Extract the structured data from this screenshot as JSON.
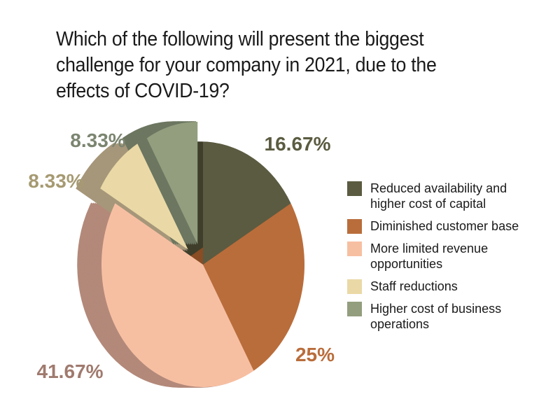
{
  "chart_data": {
    "type": "pie",
    "title": "Which of the following will present the biggest challenge for your company in 2021, due to the effects of COVID-19?",
    "slices": [
      {
        "label": "Reduced availability and\nhigher cost of capital",
        "value": 16.67,
        "value_label": "16.67%",
        "color": "#5b5b41",
        "side_color": "#3e3e2a",
        "label_color": "#5b5b41"
      },
      {
        "label": "Diminished customer base",
        "value": 25,
        "value_label": "25%",
        "color": "#b96d3b",
        "side_color": "#8a4d24",
        "label_color": "#b96d3b"
      },
      {
        "label": "More limited revenue\nopportunities",
        "value": 41.67,
        "value_label": "41.67%",
        "color": "#f7bfa2",
        "side_color": "#b3897a",
        "label_color": "#a07a6e"
      },
      {
        "label": "Staff reductions",
        "value": 8.33,
        "value_label": "8.33%",
        "color": "#ead9a6",
        "side_color": "#a6977a",
        "label_color": "#a69a72"
      },
      {
        "label": "Higher cost of business\noperations",
        "value": 8.33,
        "value_label": "8.33%",
        "color": "#929e7e",
        "side_color": "#6c7660",
        "label_color": "#7b8570"
      }
    ],
    "start_angle": "12 o'clock",
    "direction": "clockwise",
    "legend_position": "right",
    "style": "3d-exploded"
  }
}
